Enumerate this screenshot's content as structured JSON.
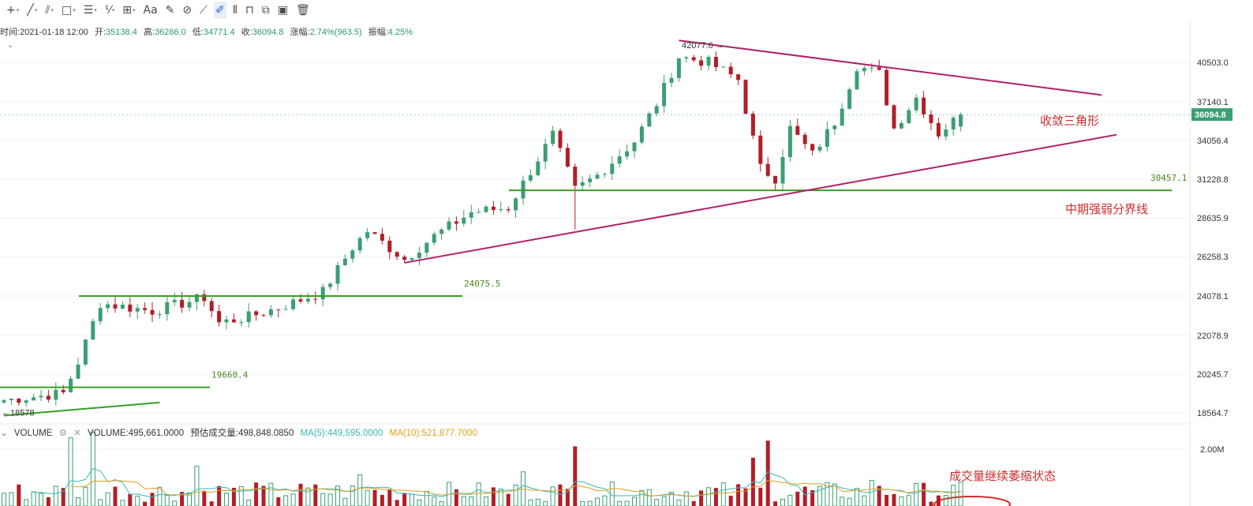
{
  "toolbar": {
    "tools": [
      {
        "name": "crosshair-tool",
        "glyph": "+",
        "caret": true,
        "selected": false
      },
      {
        "name": "trendline-tool",
        "glyph": "╱",
        "caret": true,
        "selected": false
      },
      {
        "name": "parallel-channel-tool",
        "glyph": "⫽",
        "caret": true,
        "selected": false
      },
      {
        "name": "rectangle-tool",
        "glyph": "□",
        "caret": true,
        "selected": false
      },
      {
        "name": "fib-tool",
        "glyph": "☰",
        "caret": true,
        "selected": false
      },
      {
        "name": "pattern-tool",
        "glyph": "⅟",
        "caret": true,
        "selected": false
      },
      {
        "name": "measure-tool",
        "glyph": "⊞",
        "caret": true,
        "selected": false
      },
      {
        "name": "text-tool",
        "glyph": "Aa",
        "caret": false,
        "selected": false
      },
      {
        "name": "brush-tool",
        "glyph": "✎",
        "caret": false,
        "selected": false
      },
      {
        "name": "magnet-tool",
        "glyph": "⊘",
        "caret": false,
        "selected": false
      },
      {
        "name": "ruler-tool",
        "glyph": "⟋",
        "caret": false,
        "selected": false
      },
      {
        "name": "draw-mode-tool",
        "glyph": "✐",
        "caret": false,
        "selected": true
      },
      {
        "name": "visibility-tool",
        "glyph": "⦀",
        "caret": false,
        "selected": false
      },
      {
        "name": "lock-tool",
        "glyph": "⊓",
        "caret": false,
        "selected": false
      },
      {
        "name": "copy-tool",
        "glyph": "⧉",
        "caret": false,
        "selected": false
      },
      {
        "name": "screenshot-tool",
        "glyph": "▣",
        "caret": false,
        "selected": false
      },
      {
        "name": "delete-tool",
        "glyph": "🗑",
        "caret": false,
        "selected": false
      }
    ]
  },
  "ohlc": {
    "time_label": "时间:",
    "time": "2021-01-18 12:00",
    "open_label": "开:",
    "open": "35138.4",
    "high_label": "高:",
    "high": "36266.0",
    "low_label": "低:",
    "low": "34771.4",
    "close_label": "收:",
    "close": "36094.8",
    "change_label": "涨幅:",
    "change": "2.74%(963.5)",
    "amplitude_label": "振幅:",
    "amplitude": "4.25%"
  },
  "volume_header": {
    "name": "VOLUME",
    "volume_label": "VOLUME:495,661.0000",
    "estimated_label": "预估成交量:498,848.0850",
    "ma5_label": "MA(5):449,595.0000",
    "ma10_label": "MA(10):521,877.7000"
  },
  "colors": {
    "up": "#3a9f72",
    "down": "#b21e26",
    "support": "#36a021",
    "triangle": "#b0206a",
    "annotation": "#cf2c2c",
    "ma5": "#39b8b8",
    "ma10": "#e0a020",
    "price_tag_bg": "#3a9f72"
  },
  "chart_data": {
    "type": "candlestick",
    "y_axis": {
      "tick_labels": [
        "40503.0",
        "37140.1",
        "34056.4",
        "31228.8",
        "28635.9",
        "26258.3",
        "24078.1",
        "22078.9",
        "20245.7",
        "18564.7"
      ],
      "log_scale": true,
      "range": [
        18100,
        44000
      ]
    },
    "last_price": "36094.8",
    "annotations": [
      {
        "text": "42077.6",
        "kind": "high_marker",
        "price": 42077.6
      },
      {
        "text": "18578",
        "kind": "low_marker",
        "price": 18578
      },
      {
        "text": "30457.1",
        "kind": "horizontal_line_label",
        "price": 30457.1
      },
      {
        "text": "24075.5",
        "kind": "horizontal_line_label",
        "price": 24075.5
      },
      {
        "text": "19660.4",
        "kind": "horizontal_line_label",
        "price": 19660.4
      },
      {
        "text": "收敛三角形",
        "kind": "note"
      },
      {
        "text": "中期强弱分界线",
        "kind": "note"
      },
      {
        "text": "成交量继续萎缩状态",
        "kind": "note"
      }
    ],
    "horizontal_lines": [
      {
        "price": 30457.1,
        "label": "30457.1"
      },
      {
        "price": 24075.5,
        "label": "24075.5"
      },
      {
        "price": 19660.4,
        "label": "19660.4"
      }
    ],
    "trend_lines": [
      {
        "name": "triangle-upper",
        "points": [
          [
            91,
            42500
          ],
          [
            148,
            37700
          ]
        ]
      },
      {
        "name": "triangle-lower",
        "points": [
          [
            54,
            25900
          ],
          [
            150,
            34500
          ]
        ]
      },
      {
        "name": "lower-support",
        "points": [
          [
            0,
            18450
          ],
          [
            21,
            19000
          ]
        ]
      }
    ],
    "key_points": [
      {
        "i": 0,
        "price": 19100
      },
      {
        "i": 8,
        "price": 19400
      },
      {
        "i": 10,
        "price": 20800
      },
      {
        "i": 13,
        "price": 23700
      },
      {
        "i": 20,
        "price": 23300
      },
      {
        "i": 27,
        "price": 24000
      },
      {
        "i": 29,
        "price": 22700
      },
      {
        "i": 33,
        "price": 23000
      },
      {
        "i": 38,
        "price": 23600
      },
      {
        "i": 43,
        "price": 24300
      },
      {
        "i": 47,
        "price": 26800
      },
      {
        "i": 49,
        "price": 27800
      },
      {
        "i": 54,
        "price": 26100
      },
      {
        "i": 58,
        "price": 27500
      },
      {
        "i": 63,
        "price": 29000
      },
      {
        "i": 68,
        "price": 29300
      },
      {
        "i": 71,
        "price": 31800
      },
      {
        "i": 74,
        "price": 34500
      },
      {
        "i": 77,
        "price": 30500
      },
      {
        "i": 80,
        "price": 31500
      },
      {
        "i": 85,
        "price": 34000
      },
      {
        "i": 88,
        "price": 37000
      },
      {
        "i": 91,
        "price": 41000
      },
      {
        "i": 95,
        "price": 40500
      },
      {
        "i": 99,
        "price": 39000
      },
      {
        "i": 102,
        "price": 32000
      },
      {
        "i": 104,
        "price": 31300
      },
      {
        "i": 106,
        "price": 35000
      },
      {
        "i": 109,
        "price": 33000
      },
      {
        "i": 112,
        "price": 35500
      },
      {
        "i": 115,
        "price": 40200
      },
      {
        "i": 118,
        "price": 39500
      },
      {
        "i": 120,
        "price": 35000
      },
      {
        "i": 123,
        "price": 37500
      },
      {
        "i": 126,
        "price": 34600
      },
      {
        "i": 129,
        "price": 36094.8
      }
    ],
    "volume_axis_label": "2.00M",
    "volume_peaks": [
      {
        "i": 9,
        "value": 2.4
      },
      {
        "i": 12,
        "value": 2.6
      },
      {
        "i": 26,
        "value": 1.4
      },
      {
        "i": 48,
        "value": 1.1
      },
      {
        "i": 70,
        "value": 1.2
      },
      {
        "i": 77,
        "value": 2.1
      },
      {
        "i": 101,
        "value": 1.7
      },
      {
        "i": 103,
        "value": 2.3
      },
      {
        "i": 117,
        "value": 0.9
      }
    ]
  }
}
